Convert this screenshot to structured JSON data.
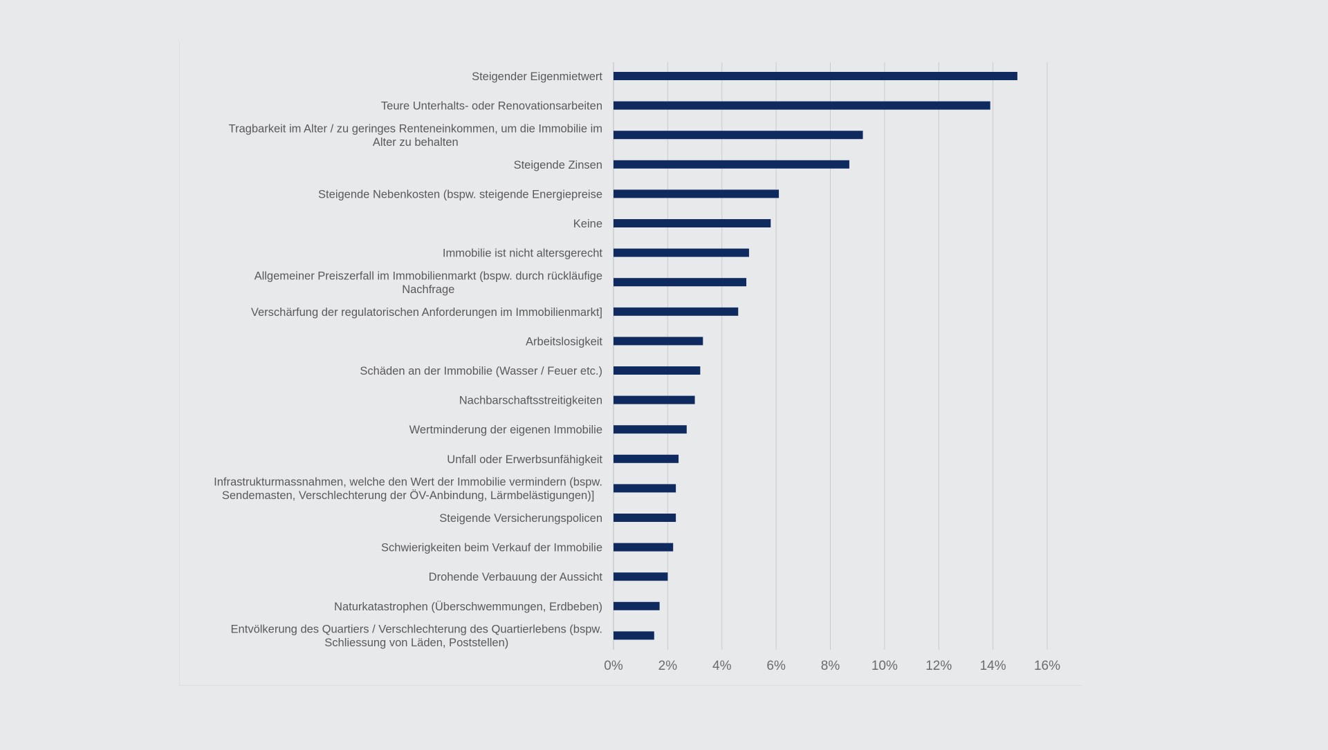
{
  "chart_data": {
    "type": "bar",
    "orientation": "horizontal",
    "title": "",
    "xlabel": "",
    "ylabel": "",
    "xlim": [
      0,
      16
    ],
    "tick_values": [
      0,
      2,
      4,
      6,
      8,
      10,
      12,
      14,
      16
    ],
    "tick_labels": [
      "0%",
      "2%",
      "4%",
      "6%",
      "8%",
      "10%",
      "12%",
      "14%",
      "16%"
    ],
    "grid": "vertical",
    "legend": "none",
    "bar_color": "#0e2a5e",
    "categories": [
      [
        "Steigender Eigenmietwert"
      ],
      [
        "Teure Unterhalts- oder Renovationsarbeiten"
      ],
      [
        "Tragbarkeit im Alter / zu geringes Renteneinkommen, um die Immobilie im",
        "Alter zu behalten"
      ],
      [
        "Steigende Zinsen"
      ],
      [
        "Steigende Nebenkosten (bspw. steigende Energiepreise"
      ],
      [
        "Keine"
      ],
      [
        "Immobilie ist nicht altersgerecht"
      ],
      [
        "Allgemeiner Preiszerfall im Immobilienmarkt (bspw. durch rückläufige",
        "Nachfrage"
      ],
      [
        "Verschärfung der regulatorischen Anforderungen im Immobilienmarkt]"
      ],
      [
        "Arbeitslosigkeit"
      ],
      [
        "Schäden an der Immobilie (Wasser / Feuer etc.)"
      ],
      [
        "Nachbarschaftsstreitigkeiten"
      ],
      [
        "Wertminderung der eigenen Immobilie"
      ],
      [
        "Unfall oder Erwerbsunfähigkeit"
      ],
      [
        "Infrastrukturmassnahmen, welche den Wert der Immobilie vermindern (bspw.",
        "Sendemasten, Verschlechterung der ÖV-Anbindung, Lärmbelästigungen)]"
      ],
      [
        "Steigende Versicherungspolicen"
      ],
      [
        "Schwierigkeiten beim Verkauf der Immobilie"
      ],
      [
        "Drohende Verbauung der Aussicht"
      ],
      [
        "Naturkatastrophen (Überschwemmungen, Erdbeben)"
      ],
      [
        "Entvölkerung des Quartiers / Verschlechterung des Quartierlebens (bspw.",
        "Schliessung von Läden, Poststellen)"
      ]
    ],
    "values": [
      14.9,
      13.9,
      9.2,
      8.7,
      6.1,
      5.8,
      5.0,
      4.9,
      4.6,
      3.3,
      3.2,
      3.0,
      2.7,
      2.4,
      2.3,
      2.3,
      2.2,
      2.0,
      1.7,
      1.5
    ]
  }
}
